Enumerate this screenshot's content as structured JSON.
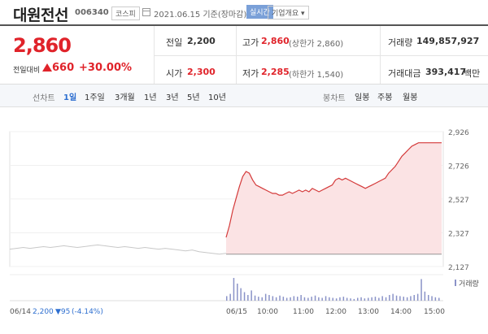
{
  "header": {
    "stock_name": "대원전선",
    "stock_code": "006340",
    "market": "코스피",
    "date": "2021.06.15 기준(장마감)",
    "realtime_label": "실시간",
    "company_label": "기업개요 ▾"
  },
  "summary": {
    "price": "2,860",
    "prev_label": "전일대비",
    "change": "660",
    "change_pct": "+30.00%",
    "prev_close_label": "전일",
    "prev_close": "2,200",
    "open_label": "시가",
    "open": "2,300",
    "high_label": "고가",
    "high": "2,860",
    "high_sub": "(상한가 2,860)",
    "low_label": "저가",
    "low": "2,285",
    "low_sub": "(하한가 1,540)",
    "volume_label": "거래량",
    "volume": "149,857,927",
    "amount_label": "거래대금",
    "amount": "393,417",
    "amount_unit": "백만"
  },
  "toolbar": {
    "line_label": "선차트",
    "periods": [
      "1일",
      "1주일",
      "3개월",
      "1년",
      "3년",
      "5년",
      "10년"
    ],
    "active_period": "1일",
    "candle_label": "봉차트",
    "candles": [
      "일봉",
      "주봉",
      "월봉"
    ]
  },
  "colors": {
    "up": "#e0232a",
    "accent": "#2e6fd0",
    "fill": "#fbe3e4"
  },
  "chart_data": {
    "type": "area",
    "y_ticks": [
      "2,926",
      "2,726",
      "2,527",
      "2,327",
      "2,127"
    ],
    "y_range": [
      2127,
      2926
    ],
    "x_ticks": [
      "06/15",
      "10:00",
      "11:00",
      "12:00",
      "13:00",
      "14:00",
      "15:00"
    ],
    "volume_label": "거래량",
    "prev_day_label": "06/14",
    "prev_day_close": "2,200",
    "prev_day_change": "▼95",
    "prev_day_pct": "(-4.14%)",
    "today_series": [
      2300,
      2370,
      2460,
      2530,
      2600,
      2660,
      2690,
      2680,
      2640,
      2610,
      2600,
      2590,
      2580,
      2570,
      2560,
      2560,
      2550,
      2550,
      2560,
      2570,
      2560,
      2570,
      2580,
      2570,
      2580,
      2570,
      2590,
      2580,
      2570,
      2580,
      2590,
      2600,
      2610,
      2640,
      2650,
      2640,
      2650,
      2640,
      2630,
      2620,
      2610,
      2600,
      2590,
      2600,
      2610,
      2620,
      2630,
      2640,
      2650,
      2680,
      2700,
      2720,
      2750,
      2780,
      2800,
      2820,
      2840,
      2850,
      2860,
      2860,
      2860,
      2860,
      2860,
      2860,
      2860,
      2860
    ],
    "prev_series": [
      2230,
      2235,
      2240,
      2235,
      2240,
      2245,
      2240,
      2245,
      2250,
      2245,
      2240,
      2245,
      2250,
      2255,
      2250,
      2245,
      2240,
      2245,
      2240,
      2235,
      2240,
      2235,
      2230,
      2235,
      2230,
      2225,
      2220,
      2225,
      2215,
      2210,
      2205,
      2200,
      2205
    ],
    "volume_series": [
      8,
      12,
      40,
      30,
      22,
      15,
      10,
      18,
      9,
      7,
      6,
      12,
      10,
      8,
      6,
      9,
      7,
      5,
      6,
      8,
      7,
      10,
      6,
      5,
      7,
      9,
      6,
      5,
      8,
      6,
      5,
      4,
      6,
      7,
      5,
      4,
      3,
      5,
      6,
      4,
      5,
      6,
      7,
      5,
      8,
      6,
      10,
      12,
      9,
      8,
      7,
      6,
      8,
      10,
      12,
      38,
      16,
      10,
      8,
      6,
      5
    ]
  }
}
